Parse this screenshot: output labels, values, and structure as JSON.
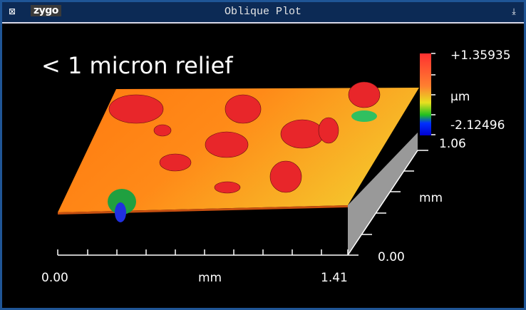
{
  "window": {
    "title": "Oblique Plot",
    "logo": "zygo"
  },
  "plot": {
    "annotation": "< 1 micron relief",
    "scale_max": "+1.35935",
    "scale_unit": "µm",
    "scale_min": "-2.12496",
    "x_min": "0.00",
    "x_unit": "mm",
    "x_max": "1.41",
    "y_min": "0.00",
    "y_unit": "mm",
    "y_max": "1.06"
  }
}
